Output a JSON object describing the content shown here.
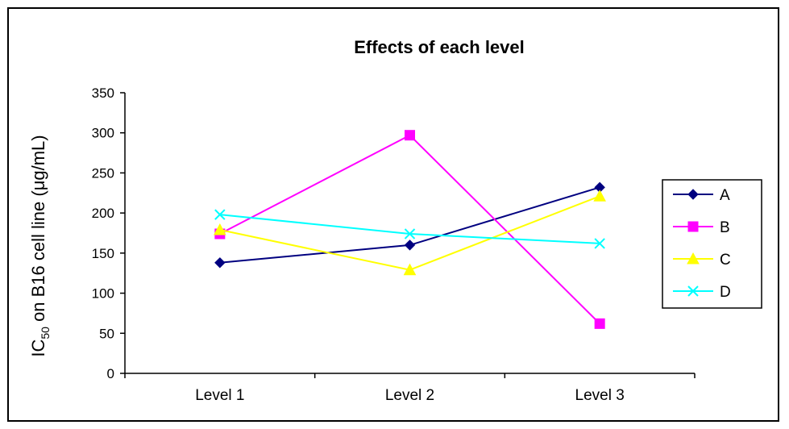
{
  "chart_data": {
    "type": "line",
    "title": "Effects of each level",
    "ylabel": "IC50 on B16 cell line (μg/mL)",
    "ylabel_parts": {
      "pre": "IC",
      "sub": "50",
      "post": " on B16 cell line  (μg/mL)"
    },
    "xlabel": "",
    "categories": [
      "Level 1",
      "Level 2",
      "Level 3"
    ],
    "ylim": [
      0,
      350
    ],
    "yticks": [
      0,
      50,
      100,
      150,
      200,
      250,
      300,
      350
    ],
    "grid": false,
    "legend_position": "right",
    "series": [
      {
        "name": "A",
        "values": [
          138,
          160,
          232
        ],
        "color": "#000080",
        "marker": "diamond"
      },
      {
        "name": "B",
        "values": [
          174,
          297,
          62
        ],
        "color": "#FF00FF",
        "marker": "square"
      },
      {
        "name": "C",
        "values": [
          179,
          129,
          221
        ],
        "color": "#FFFF00",
        "marker": "triangle"
      },
      {
        "name": "D",
        "values": [
          198,
          174,
          162
        ],
        "color": "#00FFFF",
        "marker": "x"
      }
    ]
  }
}
